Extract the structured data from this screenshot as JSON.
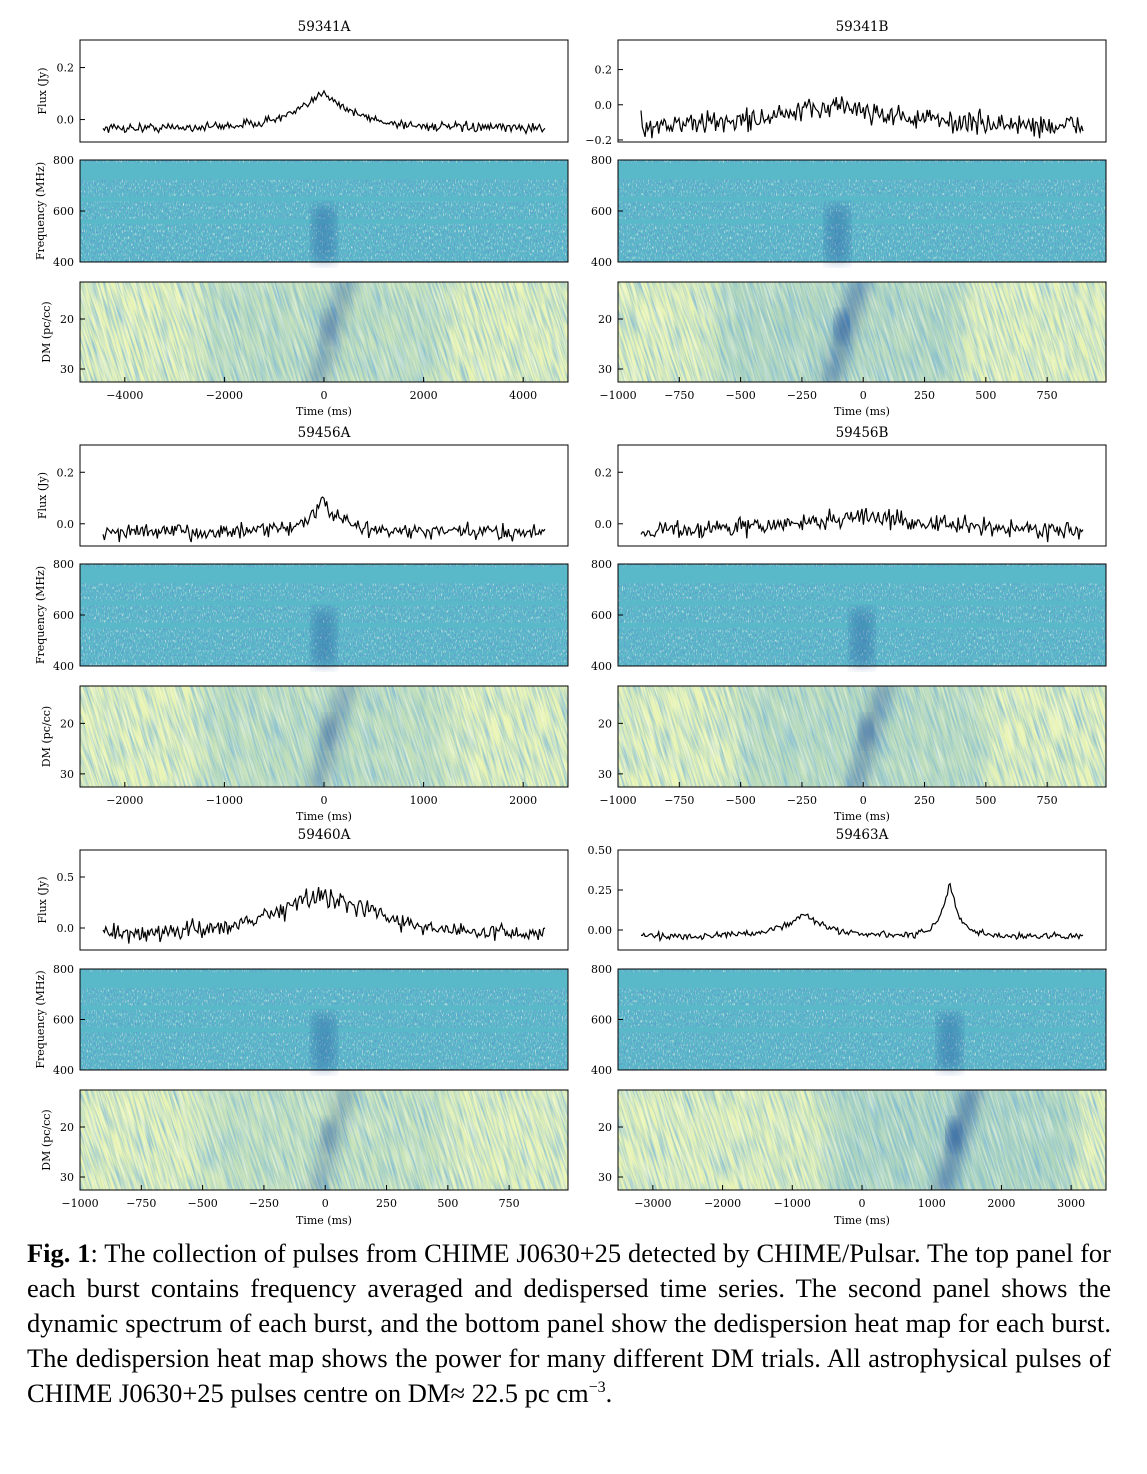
{
  "figure": {
    "bursts": [
      {
        "title": "59341A",
        "flux_ylabel": "Flux (Jy)",
        "freq_ylabel": "Frequency (MHz)",
        "dm_ylabel": "DM (pc/cc)",
        "xlabel": "Time (ms)",
        "flux_ticks": [
          "0.2",
          "0.0"
        ],
        "freq_ticks": [
          "800",
          "600",
          "400"
        ],
        "dm_ticks": [
          "20",
          "30"
        ],
        "time_ticks": [
          "−4000",
          "−2000",
          "0",
          "2000",
          "4000"
        ],
        "peak_ms": 0
      },
      {
        "title": "59341B",
        "flux_ylabel": "",
        "freq_ylabel": "",
        "dm_ylabel": "",
        "xlabel": "Time (ms)",
        "flux_ticks": [
          "0.2",
          "0.0",
          "−0.2"
        ],
        "freq_ticks": [
          "800",
          "600",
          "400"
        ],
        "dm_ticks": [
          "20",
          "30"
        ],
        "time_ticks": [
          "−1000",
          "−750",
          "−500",
          "−250",
          "0",
          "250",
          "500",
          "750"
        ],
        "peak_ms": -120
      },
      {
        "title": "59456A",
        "flux_ylabel": "Flux (Jy)",
        "freq_ylabel": "Frequency (MHz)",
        "dm_ylabel": "DM (pc/cc)",
        "xlabel": "Time (ms)",
        "flux_ticks": [
          "0.2",
          "0.0"
        ],
        "freq_ticks": [
          "800",
          "600",
          "400"
        ],
        "dm_ticks": [
          "20",
          "30"
        ],
        "time_ticks": [
          "−2000",
          "−1000",
          "0",
          "1000",
          "2000"
        ],
        "peak_ms": 0
      },
      {
        "title": "59456B",
        "flux_ylabel": "",
        "freq_ylabel": "",
        "dm_ylabel": "",
        "xlabel": "Time (ms)",
        "flux_ticks": [
          "0.2",
          "0.0"
        ],
        "freq_ticks": [
          "800",
          "600",
          "400"
        ],
        "dm_ticks": [
          "20",
          "30"
        ],
        "time_ticks": [
          "−1000",
          "−750",
          "−500",
          "−250",
          "0",
          "250",
          "500",
          "750"
        ],
        "peak_ms": 0
      },
      {
        "title": "59460A",
        "flux_ylabel": "Flux (Jy)",
        "freq_ylabel": "Frequency (MHz)",
        "dm_ylabel": "DM (pc/cc)",
        "xlabel": "Time (ms)",
        "flux_ticks": [
          "0.5",
          "0.0"
        ],
        "freq_ticks": [
          "800",
          "600",
          "400"
        ],
        "dm_ticks": [
          "20",
          "30"
        ],
        "time_ticks": [
          "−1000",
          "−750",
          "−500",
          "−250",
          "0",
          "250",
          "500",
          "750"
        ],
        "peak_ms": 0
      },
      {
        "title": "59463A",
        "flux_ylabel": "",
        "freq_ylabel": "",
        "dm_ylabel": "",
        "xlabel": "Time (ms)",
        "flux_ticks": [
          "0.50",
          "0.25",
          "0.00"
        ],
        "freq_ticks": [
          "800",
          "600",
          "400"
        ],
        "dm_ticks": [
          "20",
          "30"
        ],
        "time_ticks": [
          "−3000",
          "−2000",
          "−1000",
          "0",
          "1000",
          "2000",
          "3000"
        ],
        "peak_ms": 1300
      }
    ]
  },
  "caption": {
    "label": "Fig. 1",
    "text": ": The collection of pulses from CHIME J0630+25 detected by CHIME/Pulsar. The top panel for each burst contains frequency averaged and dedispersed time series. The second panel shows the dynamic spectrum of each burst, and the bottom panel show the dedispersion heat map for each burst. The dedispersion heat map shows the power for many different DM trials. All astrophysical pulses of CHIME J0630+25 pulses centre on DM≈ 22.5 pc cm",
    "exponent": "−3",
    "end": "."
  },
  "colors": {
    "line": "#000000",
    "spec_base": "#5ab9c8",
    "map_light": "#e9f4b4",
    "map_dark": "#1f4f9c"
  }
}
